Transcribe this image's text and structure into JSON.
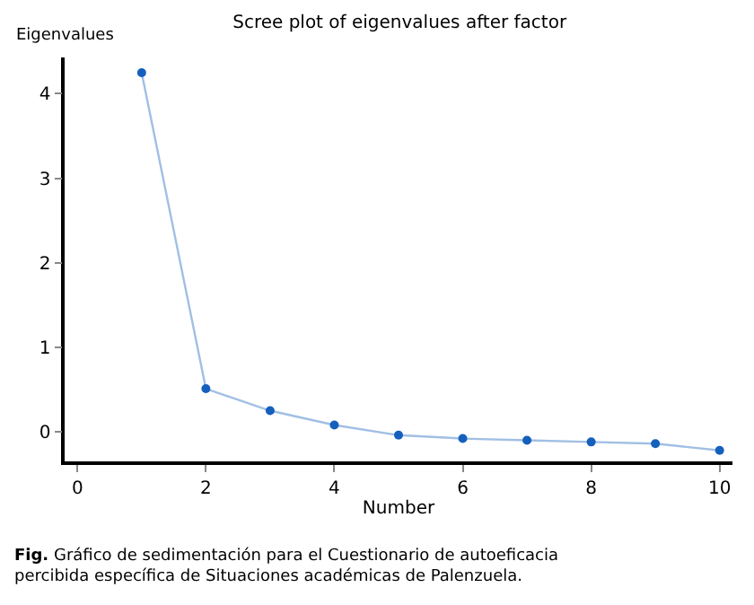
{
  "chart_data": {
    "type": "line",
    "title": "Scree plot of eigenvalues after factor",
    "xlabel": "Number",
    "ylabel": "Eigenvalues",
    "x": [
      1,
      2,
      3,
      4,
      5,
      6,
      7,
      8,
      9,
      10
    ],
    "series": [
      {
        "color": "#1560bd",
        "values": [
          4.25,
          0.51,
          0.25,
          0.08,
          -0.04,
          -0.08,
          -0.1,
          -0.12,
          -0.14,
          -0.22
        ]
      }
    ],
    "xlim": [
      -0.2,
      10.2
    ],
    "xticks": [
      0,
      2,
      4,
      6,
      8,
      10
    ],
    "ylim": [
      -0.35,
      4.43
    ],
    "yticks": [
      0,
      1,
      2,
      3,
      4
    ],
    "marker": "circle",
    "line_style": "solid",
    "annotations": [
      "Fig. Gráfico de sedimentación para el Cuestionario de autoeficacia percibida específica de Situaciones académicas de Palenzuela."
    ]
  }
}
